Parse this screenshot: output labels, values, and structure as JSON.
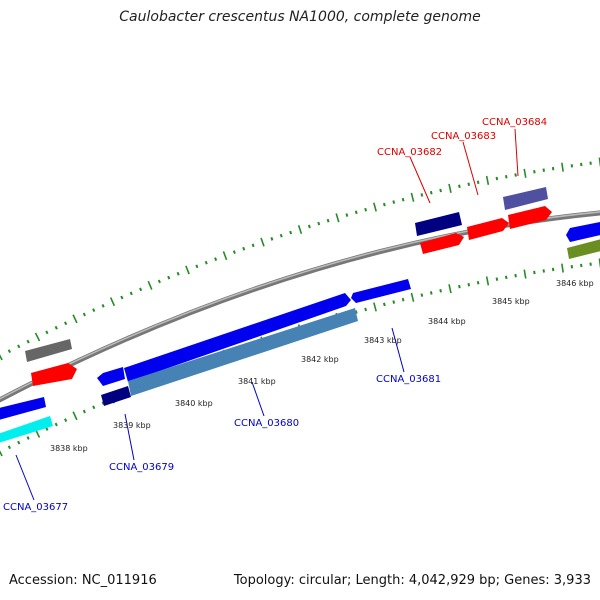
{
  "title": "Caulobacter crescentus NA1000, complete genome",
  "footer": {
    "accession": "Accession: NC_011916",
    "topology": "Topology: circular; Length: 4,042,929 bp; Genes: 3,933"
  },
  "colors": {
    "backbone": "#888888",
    "tick": "#2a8a2a",
    "forward_label": "#dd0000",
    "reverse_label": "#0000cc"
  },
  "scale_labels": [
    "3838 kbp",
    "3839 kbp",
    "3840 kbp",
    "3841 kbp",
    "3842 kbp",
    "3843 kbp",
    "3844 kbp",
    "3845 kbp",
    "3846 kbp"
  ],
  "gene_labels": {
    "forward": [
      "CCNA_03682",
      "CCNA_03683",
      "CCNA_03684"
    ],
    "reverse": [
      "CCNA_03677",
      "CCNA_03679",
      "CCNA_03680",
      "CCNA_03681"
    ]
  }
}
